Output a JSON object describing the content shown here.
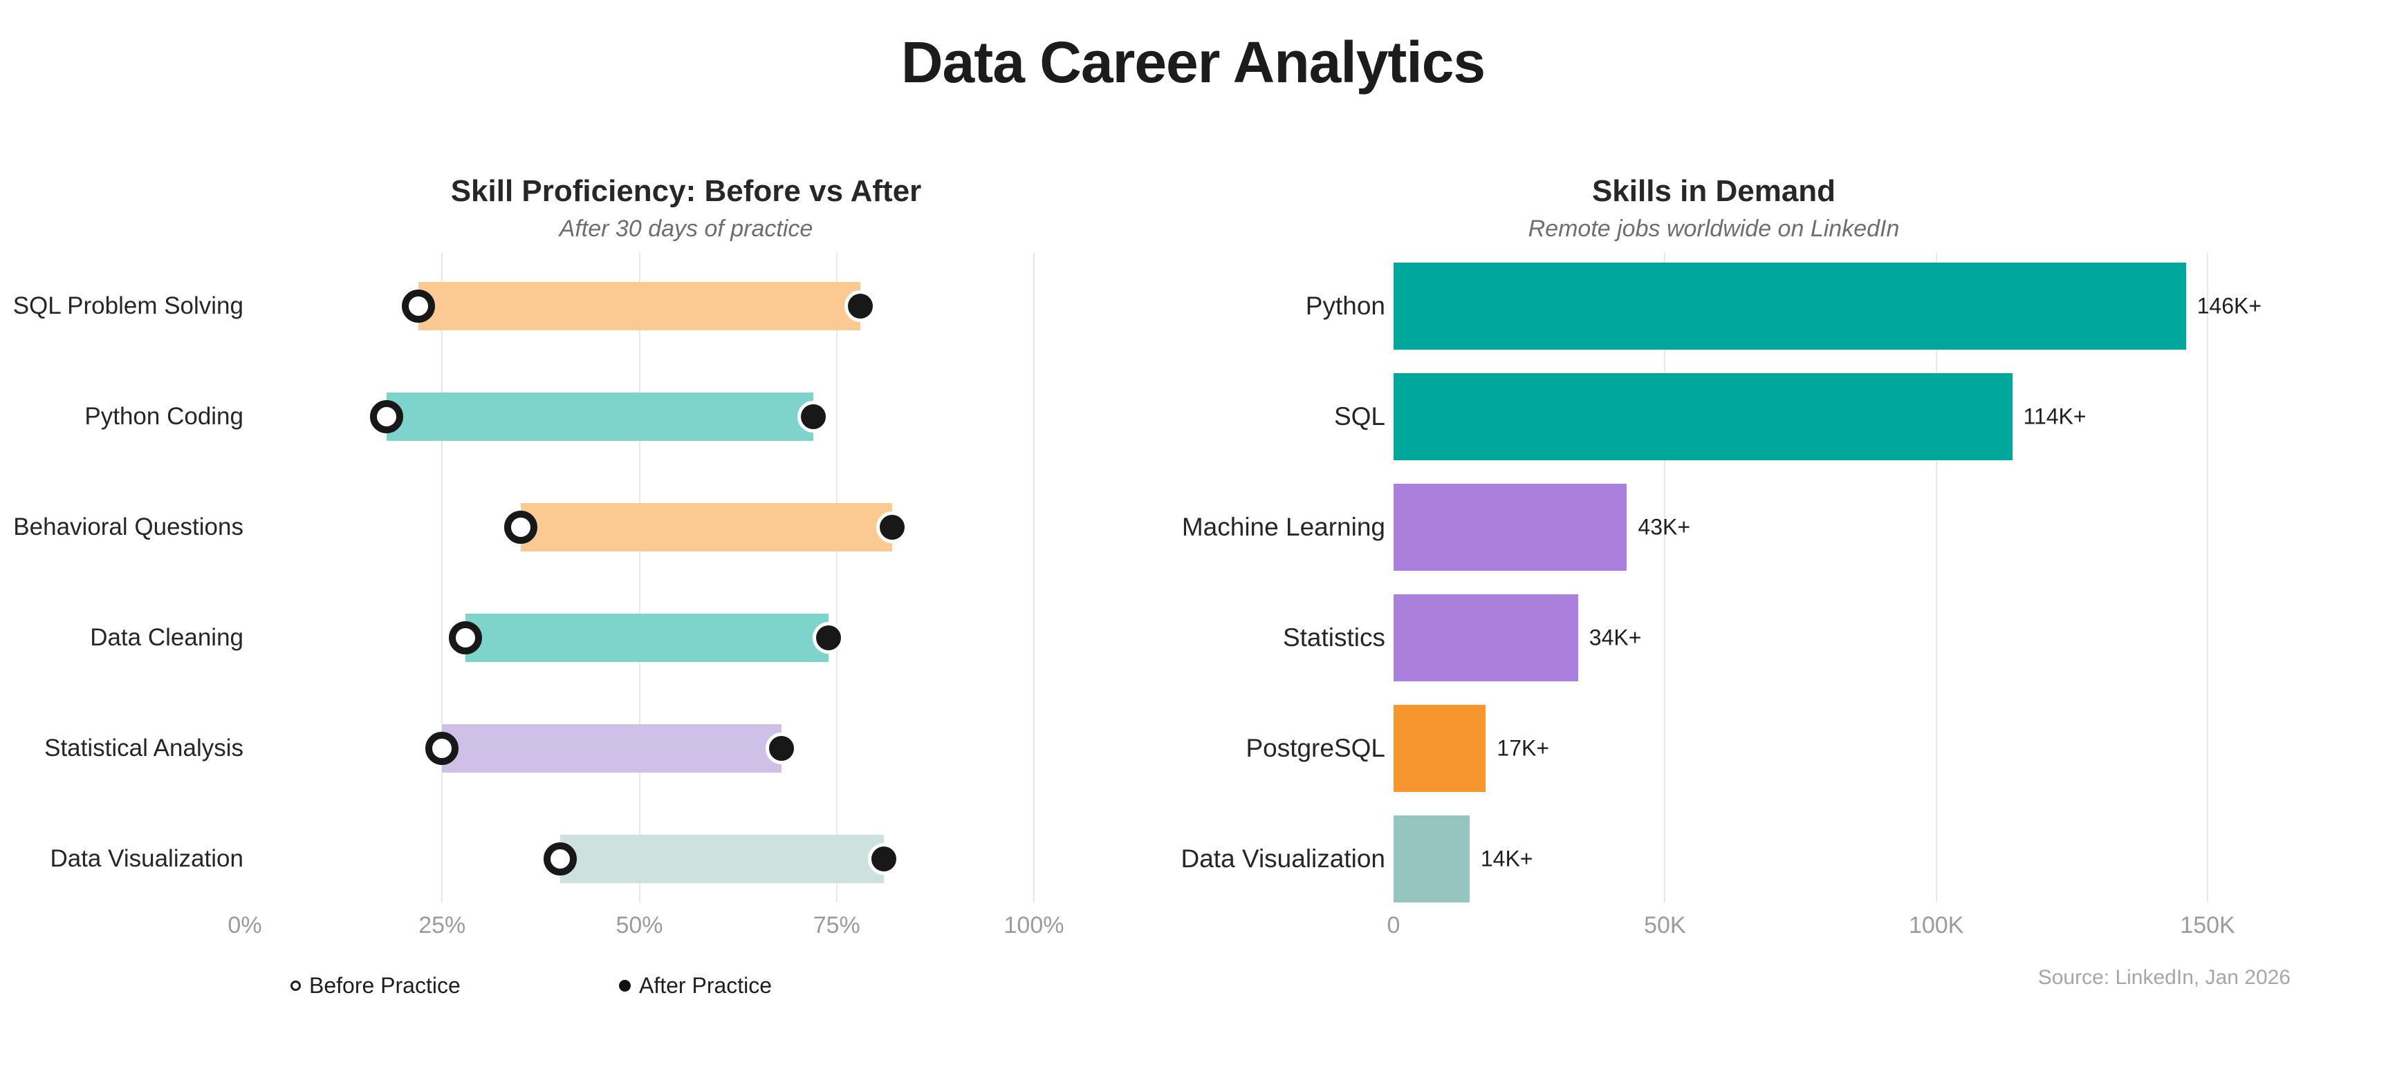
{
  "page": {
    "title": "Data Career Analytics"
  },
  "chart_data": [
    {
      "type": "dumbbell",
      "title": "Skill Proficiency: Before vs After",
      "subtitle": "After 30 days of practice",
      "categories": [
        "SQL Problem Solving",
        "Python Coding",
        "Behavioral Questions",
        "Data Cleaning",
        "Statistical Analysis",
        "Data Visualization"
      ],
      "series": [
        {
          "name": "Before Practice",
          "marker": "open-circle",
          "values": [
            22,
            18,
            35,
            28,
            25,
            40
          ]
        },
        {
          "name": "After Practice",
          "marker": "filled-circle",
          "values": [
            78,
            72,
            82,
            74,
            68,
            81
          ]
        }
      ],
      "bar_colors": [
        "#FACA92",
        "#7ED4CA",
        "#FACA92",
        "#7ED4CA",
        "#CFC0E8",
        "#CDE2DE"
      ],
      "xlim": [
        0,
        100
      ],
      "ticks": [
        {
          "v": 0,
          "label": "0%"
        },
        {
          "v": 25,
          "label": "25%"
        },
        {
          "v": 50,
          "label": "50%"
        },
        {
          "v": 75,
          "label": "75%"
        },
        {
          "v": 100,
          "label": "100%"
        }
      ],
      "grid": true,
      "legend_position": "bottom"
    },
    {
      "type": "bar",
      "title": "Skills in Demand",
      "subtitle": "Remote jobs worldwide on LinkedIn",
      "categories": [
        "Python",
        "SQL",
        "Machine Learning",
        "Statistics",
        "PostgreSQL",
        "Data Visualization"
      ],
      "values": [
        146000,
        114000,
        43000,
        34000,
        17000,
        14000
      ],
      "value_labels": [
        "146K+",
        "114K+",
        "43K+",
        "34K+",
        "17K+",
        "14K+"
      ],
      "bar_colors": [
        "#00A89B",
        "#00A89B",
        "#AA80DC",
        "#AA80DC",
        "#F7962E",
        "#96C4BE"
      ],
      "xlim": [
        0,
        150000
      ],
      "ticks": [
        {
          "v": 0,
          "label": "0"
        },
        {
          "v": 50000,
          "label": "50K"
        },
        {
          "v": 100000,
          "label": "100K"
        },
        {
          "v": 150000,
          "label": "150K"
        }
      ],
      "grid": true,
      "source": "Source: LinkedIn, Jan 2026"
    }
  ],
  "colors": {
    "teal_strong": "#00A89B",
    "purple_strong": "#AA80DC",
    "orange_strong": "#F7962E",
    "teal_pale": "#96C4BE",
    "orange_light": "#FACA92",
    "teal_light": "#7ED4CA",
    "purple_light": "#CFC0E8",
    "green_pale": "#CDE2DE",
    "grid": "#e8e8e8",
    "axis_text": "#9b9b9b"
  }
}
